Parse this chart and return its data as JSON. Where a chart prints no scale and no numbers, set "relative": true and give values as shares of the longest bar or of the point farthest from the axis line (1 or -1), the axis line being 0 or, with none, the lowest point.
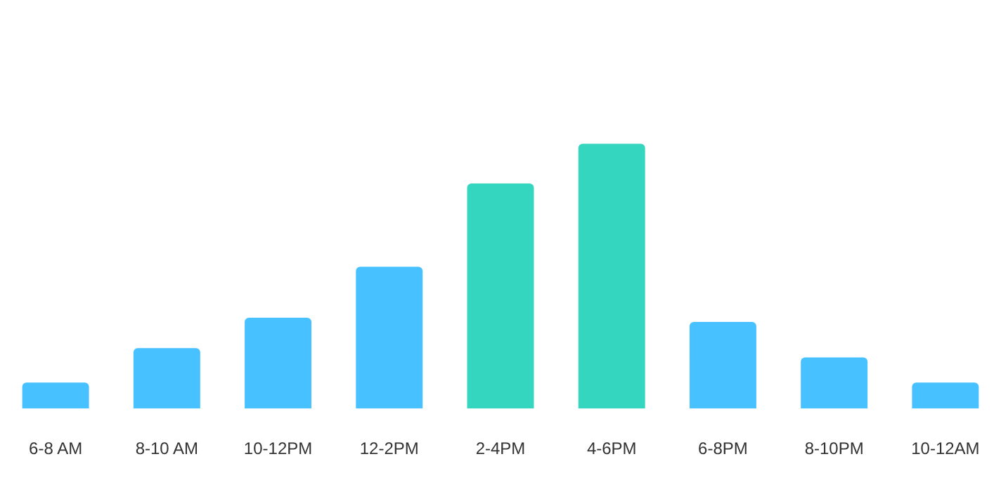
{
  "chart_data": {
    "type": "bar",
    "relative": true,
    "categories": [
      "6-8 AM",
      "8-10 AM",
      "10-12PM",
      "12-2PM",
      "2-4PM",
      "4-6PM",
      "6-8PM",
      "8-10PM",
      "10-12AM"
    ],
    "values": [
      0.098,
      0.228,
      0.343,
      0.535,
      0.85,
      1,
      0.327,
      0.193,
      0.098
    ],
    "colors": [
      "#47c1ff",
      "#47c1ff",
      "#47c1ff",
      "#47c1ff",
      "#34d6c0",
      "#34d6c0",
      "#47c1ff",
      "#47c1ff",
      "#47c1ff"
    ]
  }
}
